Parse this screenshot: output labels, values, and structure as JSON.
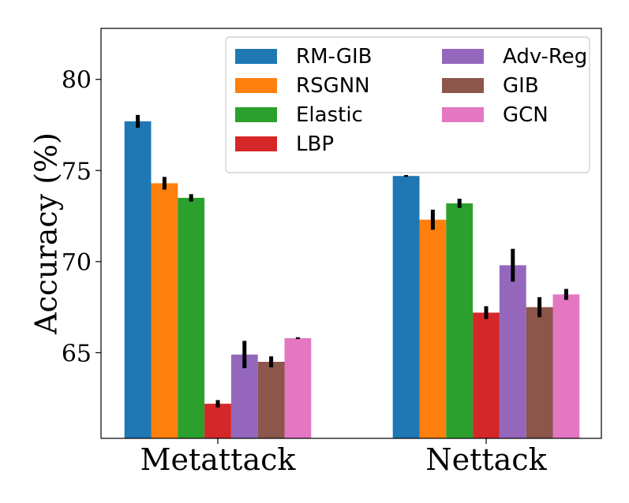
{
  "chart_data": {
    "type": "bar",
    "title": "",
    "xlabel": "",
    "ylabel": "Accuracy (%)",
    "ylim": [
      60.3,
      82.8
    ],
    "yticks": [
      65,
      70,
      75,
      80
    ],
    "categories": [
      "Metattack",
      "Nettack"
    ],
    "series": [
      {
        "name": "RM-GIB",
        "color": "#1f77b4",
        "values": [
          77.7,
          74.7
        ],
        "errors": [
          0.35,
          0.05
        ]
      },
      {
        "name": "RSGNN",
        "color": "#ff7f0e",
        "values": [
          74.3,
          72.3
        ],
        "errors": [
          0.35,
          0.55
        ]
      },
      {
        "name": "Elastic",
        "color": "#2ca02c",
        "values": [
          73.5,
          73.2
        ],
        "errors": [
          0.2,
          0.25
        ]
      },
      {
        "name": "LBP",
        "color": "#d62728",
        "values": [
          62.2,
          67.2
        ],
        "errors": [
          0.2,
          0.35
        ]
      },
      {
        "name": "Adv-Reg",
        "color": "#9467bd",
        "values": [
          64.9,
          69.8
        ],
        "errors": [
          0.75,
          0.9
        ]
      },
      {
        "name": "GIB",
        "color": "#8c564b",
        "values": [
          64.5,
          67.5
        ],
        "errors": [
          0.3,
          0.55
        ]
      },
      {
        "name": "GCN",
        "color": "#e377c2",
        "values": [
          65.8,
          68.2
        ],
        "errors": [
          0.05,
          0.3
        ]
      }
    ],
    "legend": {
      "position": "top-right",
      "columns": 2
    }
  }
}
